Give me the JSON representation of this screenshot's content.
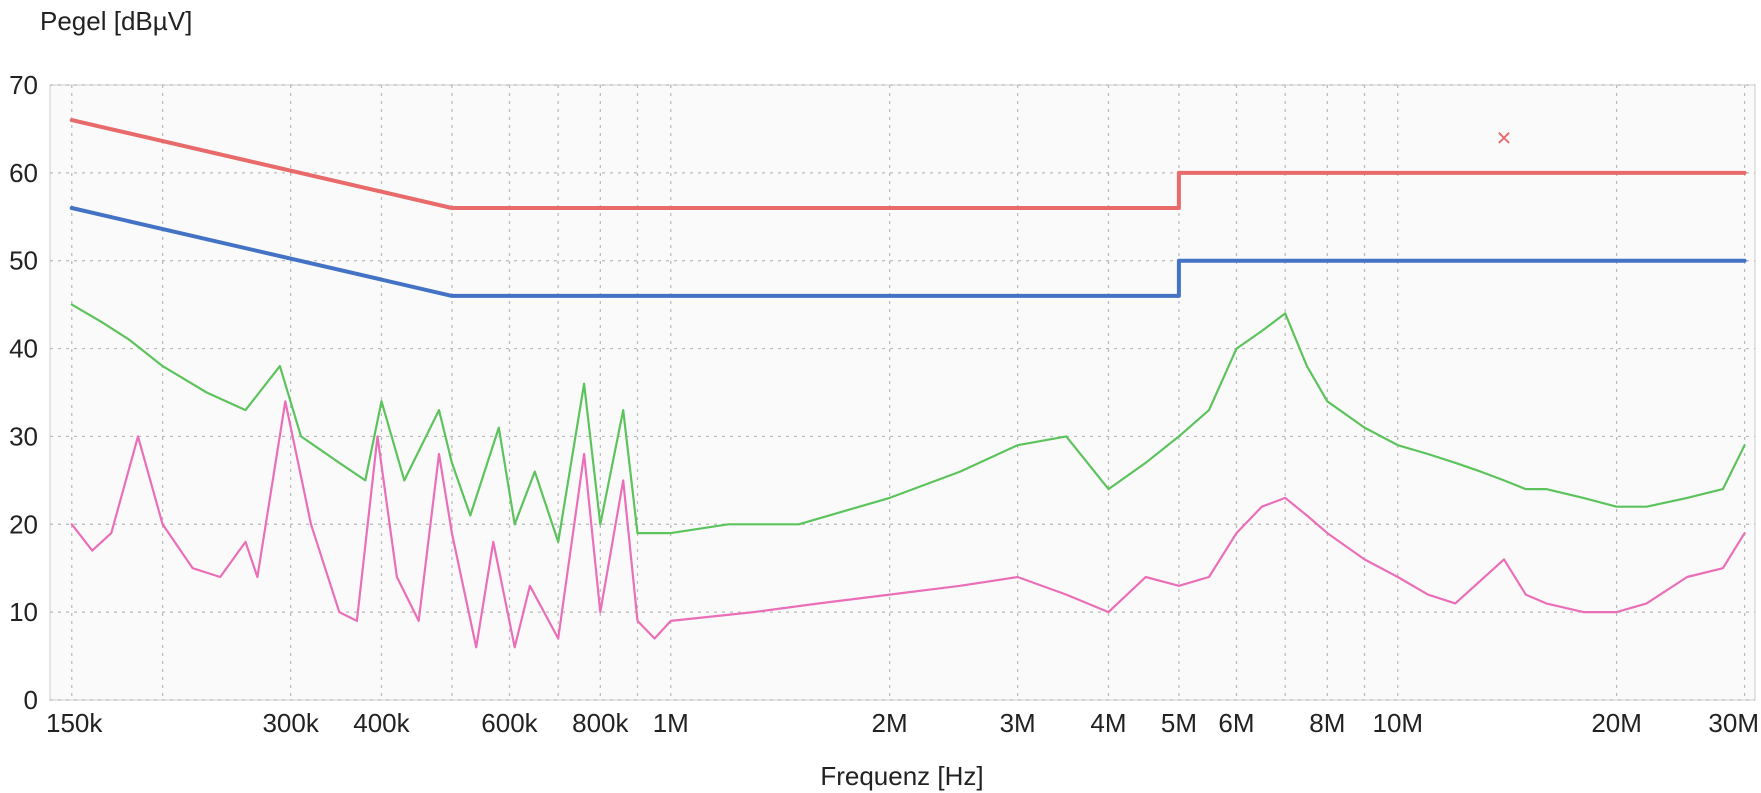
{
  "chart_data": {
    "type": "line",
    "xlabel": "Frequenz [Hz]",
    "ylabel": "Pegel [dBµV]",
    "x_scale": "log",
    "xlim": [
      140000,
      31000000
    ],
    "ylim": [
      0,
      70
    ],
    "y_ticks": [
      0,
      10,
      20,
      30,
      40,
      50,
      60,
      70
    ],
    "y_tick_labels": [
      "0",
      "10",
      "20",
      "30",
      "40",
      "50",
      "60",
      "70"
    ],
    "x_tick_labels": [
      {
        "value": 150000,
        "label": "150k"
      },
      {
        "value": 300000,
        "label": "300k"
      },
      {
        "value": 400000,
        "label": "400k"
      },
      {
        "value": 600000,
        "label": "600k"
      },
      {
        "value": 800000,
        "label": "800k"
      },
      {
        "value": 1000000,
        "label": "1M"
      },
      {
        "value": 2000000,
        "label": "2M"
      },
      {
        "value": 3000000,
        "label": "3M"
      },
      {
        "value": 4000000,
        "label": "4M"
      },
      {
        "value": 5000000,
        "label": "5M"
      },
      {
        "value": 6000000,
        "label": "6M"
      },
      {
        "value": 8000000,
        "label": "8M"
      },
      {
        "value": 10000000,
        "label": "10M"
      },
      {
        "value": 20000000,
        "label": "20M"
      },
      {
        "value": 30000000,
        "label": "30M"
      }
    ],
    "x_gridlines": [
      150000,
      200000,
      300000,
      400000,
      500000,
      600000,
      700000,
      800000,
      900000,
      1000000,
      2000000,
      3000000,
      4000000,
      5000000,
      6000000,
      7000000,
      8000000,
      9000000,
      10000000,
      20000000,
      30000000
    ],
    "grid": true,
    "series": [
      {
        "color": "#e86a6a",
        "style": "limit-line",
        "x": [
          150000,
          500000,
          5000000,
          5000000,
          30000000
        ],
        "y": [
          66,
          56,
          56,
          60,
          60
        ]
      },
      {
        "color": "#4472c4",
        "style": "limit-line",
        "x": [
          150000,
          500000,
          5000000,
          5000000,
          30000000
        ],
        "y": [
          56,
          46,
          46,
          50,
          50
        ]
      },
      {
        "color": "#5dc35d",
        "style": "measurement",
        "x": [
          150000,
          165000,
          180000,
          200000,
          230000,
          260000,
          290000,
          310000,
          350000,
          380000,
          400000,
          430000,
          480000,
          500000,
          530000,
          580000,
          610000,
          650000,
          700000,
          760000,
          800000,
          860000,
          900000,
          1000000,
          1200000,
          1500000,
          2000000,
          2500000,
          3000000,
          3500000,
          4000000,
          4500000,
          5000000,
          5500000,
          6000000,
          6500000,
          7000000,
          7500000,
          8000000,
          9000000,
          10000000,
          11000000,
          12000000,
          13000000,
          14000000,
          15000000,
          16000000,
          18000000,
          20000000,
          22000000,
          25000000,
          28000000,
          30000000
        ],
        "y": [
          45,
          43,
          41,
          38,
          35,
          33,
          38,
          30,
          27,
          25,
          34,
          25,
          33,
          27,
          21,
          31,
          20,
          26,
          18,
          36,
          20,
          33,
          19,
          19,
          20,
          20,
          23,
          26,
          29,
          30,
          24,
          27,
          30,
          33,
          40,
          42,
          44,
          38,
          34,
          31,
          29,
          28,
          27,
          26,
          25,
          24,
          24,
          23,
          22,
          22,
          23,
          24,
          29
        ]
      },
      {
        "color": "#ea6fb8",
        "style": "measurement",
        "x": [
          150000,
          160000,
          170000,
          185000,
          200000,
          220000,
          240000,
          260000,
          270000,
          295000,
          320000,
          350000,
          370000,
          395000,
          420000,
          450000,
          480000,
          500000,
          540000,
          570000,
          610000,
          640000,
          700000,
          760000,
          800000,
          860000,
          900000,
          950000,
          1000000,
          1300000,
          1600000,
          2000000,
          2500000,
          3000000,
          3500000,
          4000000,
          4500000,
          5000000,
          5500000,
          6000000,
          6500000,
          7000000,
          7500000,
          8000000,
          9000000,
          10000000,
          11000000,
          12000000,
          14000000,
          15000000,
          16000000,
          18000000,
          20000000,
          22000000,
          25000000,
          28000000,
          30000000
        ],
        "y": [
          20,
          17,
          19,
          30,
          20,
          15,
          14,
          18,
          14,
          34,
          20,
          10,
          9,
          30,
          14,
          9,
          28,
          19,
          6,
          18,
          6,
          13,
          7,
          28,
          10,
          25,
          9,
          7,
          9,
          10,
          11,
          12,
          13,
          14,
          12,
          10,
          14,
          13,
          14,
          19,
          22,
          23,
          21,
          19,
          16,
          14,
          12,
          11,
          16,
          12,
          11,
          10,
          10,
          11,
          14,
          15,
          19
        ]
      }
    ],
    "spike_peak": {
      "x": 14000000,
      "y": 64,
      "marker": "×",
      "color": "#e86a6a"
    }
  }
}
